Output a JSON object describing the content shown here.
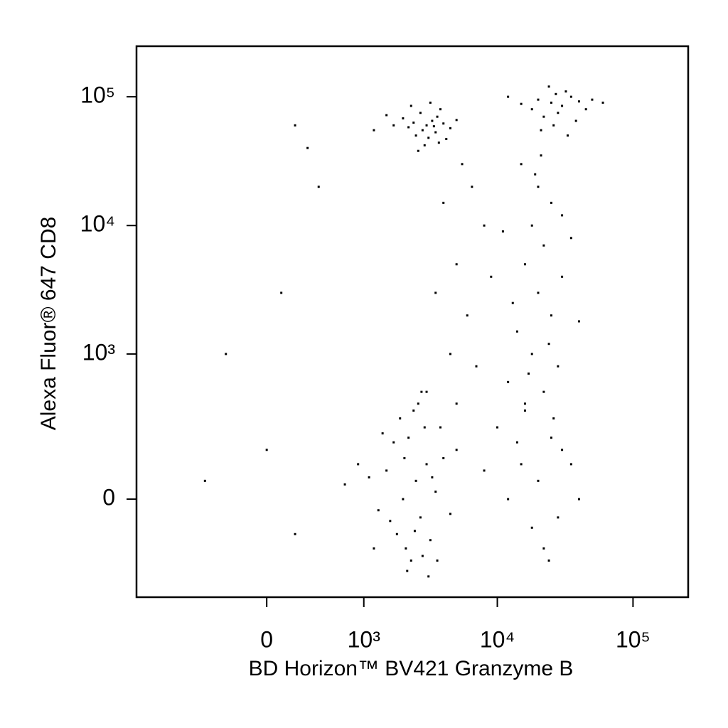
{
  "chart_data": {
    "type": "scatter",
    "x_label": "BD Horizon™ BV421 Granzyme B",
    "y_label": "Alexa Fluor® 647 CD8",
    "color": "#000000",
    "xlim": [
      -1800,
      255000
    ],
    "ylim": [
      -420,
      247000
    ],
    "xticks": [
      0,
      {
        "value": 1000,
        "label": "10³"
      },
      {
        "value": 10000,
        "label": "10⁴"
      },
      {
        "value": 100000,
        "label": "10⁵"
      }
    ],
    "yticks": [
      0,
      {
        "value": 1000,
        "label": "10³"
      },
      {
        "value": 10000,
        "label": "10⁴"
      },
      {
        "value": 100000,
        "label": "10⁵"
      }
    ],
    "x": [
      2000,
      2500,
      1800,
      3000,
      2200,
      2700,
      1500,
      3500,
      2100,
      2900,
      1300,
      4000,
      2400,
      1700,
      3200,
      2600,
      1100,
      4500,
      2300,
      1900,
      3800,
      2800,
      1600,
      2050,
      3300,
      1400,
      5000,
      2450,
      3600,
      1200,
      900,
      700,
      2750,
      3100,
      2150,
      3000,
      2800,
      3300,
      2500,
      3600,
      2200,
      4000,
      3100,
      2700,
      3500,
      2000,
      4500,
      2900,
      3800,
      2400,
      1700,
      3200,
      5000,
      2600,
      3400,
      1500,
      4200,
      2300,
      3700,
      1200,
      25000,
      30000,
      20000,
      35000,
      28000,
      18000,
      40000,
      22000,
      32000,
      15000,
      45000,
      26000,
      50000,
      12000,
      38000,
      27000,
      21000,
      60000,
      33000,
      24000,
      15000,
      20000,
      25000,
      18000,
      22000,
      30000,
      16000,
      20000,
      25000,
      14000,
      18000,
      28000,
      12000,
      22000,
      16000,
      30000,
      19000,
      35000,
      13000,
      24000,
      17000,
      26000,
      21000,
      11000,
      40000,
      15000,
      20000,
      25000,
      12000,
      18000,
      30000,
      22000,
      10000,
      28000,
      16000,
      35000,
      8000,
      24000,
      14000,
      40000,
      5000,
      6000,
      4000,
      7000,
      5500,
      3500,
      8000,
      4500,
      6500,
      3000,
      9000,
      5000,
      200,
      300,
      400,
      100,
      -300,
      -500,
      200,
      0
    ],
    "y": [
      0,
      50,
      -100,
      100,
      200,
      -50,
      80,
      20,
      -150,
      250,
      -30,
      120,
      350,
      180,
      -120,
      400,
      60,
      -40,
      -200,
      300,
      250,
      -180,
      -60,
      120,
      60,
      220,
      150,
      -90,
      -200,
      -150,
      100,
      40,
      500,
      -280,
      -250,
      60000,
      55000,
      65000,
      50000,
      70000,
      58000,
      62000,
      48000,
      75000,
      53000,
      68000,
      57000,
      42000,
      80000,
      63000,
      60000,
      90000,
      66000,
      38000,
      59000,
      72000,
      47000,
      85000,
      44000,
      55000,
      90000,
      85000,
      95000,
      100000,
      75000,
      80000,
      92000,
      70000,
      110000,
      88000,
      80000,
      60000,
      95000,
      100000,
      65000,
      105000,
      55000,
      90000,
      50000,
      120000,
      30000,
      20000,
      15000,
      10000,
      7000,
      12000,
      5000,
      3000,
      2000,
      1500,
      1000,
      800,
      600,
      500,
      400,
      4000,
      25000,
      8000,
      2500,
      1200,
      700,
      300,
      35000,
      9000,
      1800,
      100,
      50,
      200,
      0,
      -80,
      150,
      -150,
      250,
      -50,
      350,
      100,
      80,
      -200,
      180,
      0,
      5000,
      2000,
      15000,
      800,
      30000,
      3000,
      10000,
      1000,
      20000,
      500,
      4000,
      400,
      60000,
      40000,
      20000,
      3000,
      1000,
      50,
      -100,
      150
    ]
  }
}
